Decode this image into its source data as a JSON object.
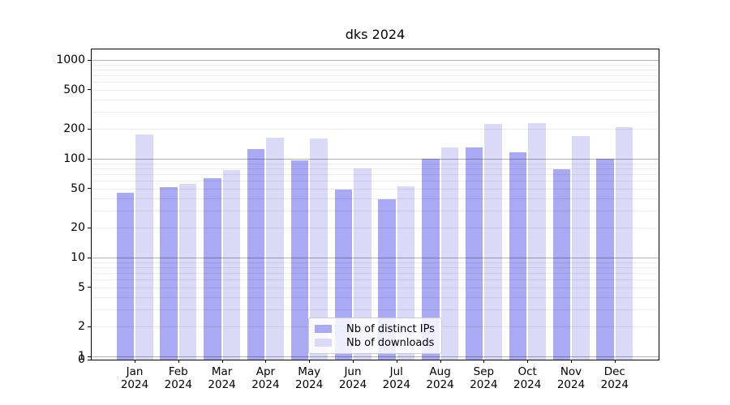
{
  "chart_data": {
    "type": "bar",
    "title": "dks 2024",
    "xlabel": "",
    "ylabel": "",
    "categories": [
      "Jan",
      "Feb",
      "Mar",
      "Apr",
      "May",
      "Jun",
      "Jul",
      "Aug",
      "Sep",
      "Oct",
      "Nov",
      "Dec"
    ],
    "category_year": "2024",
    "series": [
      {
        "name": "Nb of distinct IPs",
        "color": "#a9a9f4",
        "values": [
          45,
          52,
          64,
          126,
          96,
          49,
          39,
          100,
          131,
          117,
          78,
          100
        ]
      },
      {
        "name": "Nb of downloads",
        "color": "#dadaf8",
        "values": [
          175,
          56,
          77,
          163,
          160,
          80,
          53,
          130,
          226,
          231,
          170,
          210
        ]
      }
    ],
    "y_scale": "symlog",
    "ylim": [
      0,
      1280
    ],
    "y_ticks": [
      0,
      1,
      2,
      5,
      10,
      20,
      50,
      100,
      200,
      500,
      1000
    ],
    "y_major_gridlines": [
      1,
      10,
      100,
      1000
    ],
    "grid": "horizontal",
    "legend_position": "lower-center-inside"
  },
  "colors": {
    "axis": "#000000",
    "grid_major": "#b2b2b2",
    "grid_minor": "#ececec",
    "legend_border": "#cccccc"
  }
}
